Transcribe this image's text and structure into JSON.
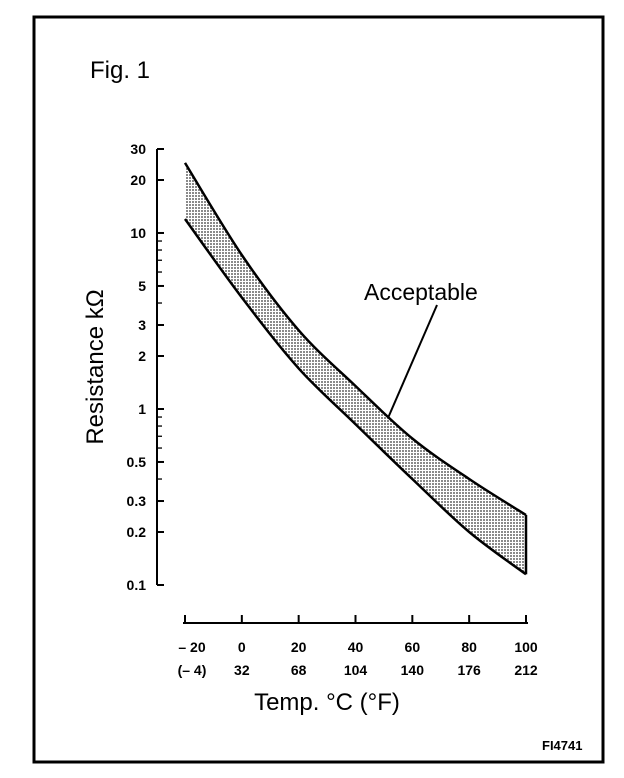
{
  "figure_label": "Fig. 1",
  "code": "FI4741",
  "colors": {
    "band_fill": "#8a8a8a",
    "ink": "#000000"
  },
  "chart_data": {
    "type": "area",
    "title": "",
    "ylabel": "Resistance kΩ",
    "xlabel": "Temp. °C (°F)",
    "yscale": "log",
    "ylim": [
      0.1,
      30
    ],
    "xlim": [
      -20,
      100
    ],
    "y_ticks": [
      {
        "v": 30,
        "label": "30"
      },
      {
        "v": 20,
        "label": "20"
      },
      {
        "v": 10,
        "label": "10"
      },
      {
        "v": 5,
        "label": "5"
      },
      {
        "v": 3,
        "label": "3"
      },
      {
        "v": 2,
        "label": "2"
      },
      {
        "v": 1,
        "label": "1"
      },
      {
        "v": 0.5,
        "label": "0.5"
      },
      {
        "v": 0.3,
        "label": "0.3"
      },
      {
        "v": 0.2,
        "label": "0.2"
      },
      {
        "v": 0.1,
        "label": "0.1"
      }
    ],
    "y_minor": [
      9,
      8,
      7,
      6,
      4,
      0.9,
      0.8,
      0.7,
      0.6,
      0.4
    ],
    "x_ticks": [
      {
        "c": -20,
        "label_c": "– 20",
        "label_f": "(– 4)"
      },
      {
        "c": 0,
        "label_c": "0",
        "label_f": "32"
      },
      {
        "c": 20,
        "label_c": "20",
        "label_f": "68"
      },
      {
        "c": 40,
        "label_c": "40",
        "label_f": "104"
      },
      {
        "c": 60,
        "label_c": "60",
        "label_f": "140"
      },
      {
        "c": 80,
        "label_c": "80",
        "label_f": "176"
      },
      {
        "c": 100,
        "label_c": "100",
        "label_f": "212"
      }
    ],
    "series": [
      {
        "name": "Acceptable",
        "x": [
          -20,
          0,
          20,
          40,
          60,
          80,
          100
        ],
        "upper": [
          25,
          7.5,
          2.8,
          1.35,
          0.68,
          0.4,
          0.25
        ],
        "lower": [
          12,
          4.3,
          1.7,
          0.82,
          0.4,
          0.2,
          0.115
        ]
      }
    ],
    "annotation": {
      "text": "Acceptable",
      "x": 50,
      "y": 0.78
    }
  }
}
